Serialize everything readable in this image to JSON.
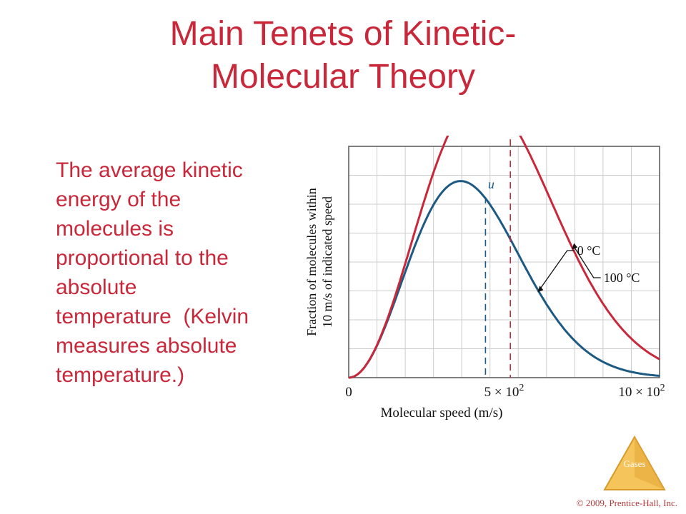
{
  "slide": {
    "title_line1": "Main Tenets of Kinetic-",
    "title_line2": "Molecular Theory",
    "body_lines": [
      "The average kinetic",
      "energy of the",
      "molecules is",
      "proportional to the",
      "absolute",
      "temperature  (Kelvin",
      "measures absolute",
      "temperature.)"
    ],
    "logo_label": "Gases",
    "copyright": "© 2009, Prentice-Hall, Inc."
  },
  "colors": {
    "title": "#c8283a",
    "curve_0C": "#1d5a83",
    "curve_100C": "#c8283a",
    "grid": "#cccccc",
    "logo": "#f0b84a"
  },
  "chart_data": {
    "type": "line",
    "xlabel": "Molecular speed (m/s)",
    "ylabel_line1": "Fraction of molecules within",
    "ylabel_line2": "10 m/s of indicated speed",
    "x_ticks": [
      {
        "value": 0,
        "label": "0"
      },
      {
        "value": 500,
        "label": "5 × 10",
        "sup": "2"
      },
      {
        "value": 1000,
        "label": "10 × 10",
        "sup": "2"
      }
    ],
    "xlim": [
      0,
      1000
    ],
    "ylim": [
      0,
      1
    ],
    "grid": true,
    "series": [
      {
        "name": "0 °C",
        "peak_speed": 360,
        "mean_speed_u": 440
      },
      {
        "name": "100 °C",
        "peak_speed": 430,
        "mean_speed_u": 520
      }
    ],
    "annotations": [
      "u",
      "u"
    ]
  }
}
